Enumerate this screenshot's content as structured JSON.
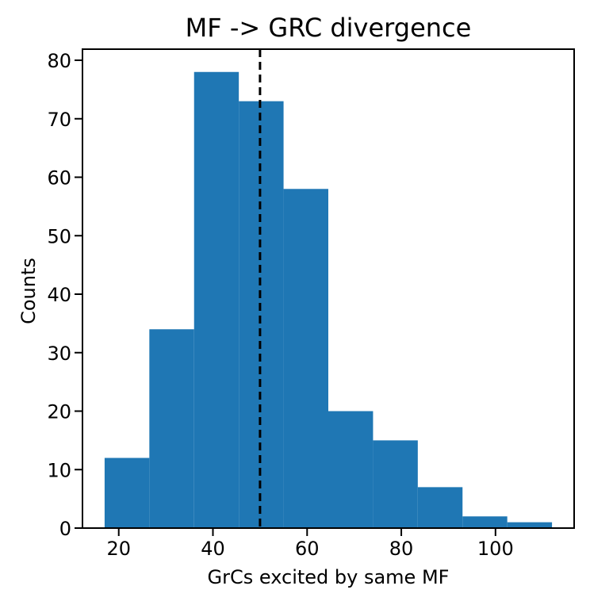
{
  "chart_data": {
    "type": "bar",
    "title": "MF -> GRC divergence",
    "xlabel": "GrCs excited by same MF",
    "ylabel": "Counts",
    "bins": [
      {
        "x0": 17.0,
        "x1": 26.5,
        "count": 12
      },
      {
        "x0": 26.5,
        "x1": 36.0,
        "count": 34
      },
      {
        "x0": 36.0,
        "x1": 45.5,
        "count": 78
      },
      {
        "x0": 45.5,
        "x1": 55.0,
        "count": 73
      },
      {
        "x0": 55.0,
        "x1": 64.5,
        "count": 58
      },
      {
        "x0": 64.5,
        "x1": 74.0,
        "count": 20
      },
      {
        "x0": 74.0,
        "x1": 83.5,
        "count": 15
      },
      {
        "x0": 83.5,
        "x1": 93.0,
        "count": 7
      },
      {
        "x0": 93.0,
        "x1": 102.5,
        "count": 2
      },
      {
        "x0": 102.5,
        "x1": 112.0,
        "count": 1
      }
    ],
    "reference_line": {
      "x": 50.0,
      "style": "dashed",
      "color": "#000000"
    },
    "bar_color": "#1f77b4",
    "xlim": [
      12.3,
      116.7
    ],
    "ylim": [
      0,
      81.9
    ],
    "xticks": [
      20,
      40,
      60,
      80,
      100
    ],
    "yticks": [
      0,
      10,
      20,
      30,
      40,
      50,
      60,
      70,
      80
    ],
    "grid": false,
    "legend": "none"
  }
}
